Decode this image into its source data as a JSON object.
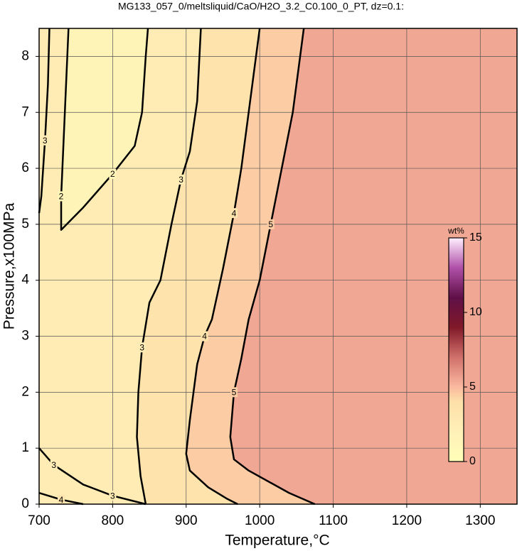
{
  "chart_data": {
    "type": "contour",
    "title": "MG133_057_0/meltsliquid/CaO/H2O_3.2_C0.100_0_PT, dz=0.1:",
    "x_label": "Temperature,°C",
    "y_label": "Pressure,x100MPa",
    "xlim": [
      700,
      1350
    ],
    "ylim": [
      0,
      8.5
    ],
    "xticks": [
      700,
      800,
      900,
      1000,
      1100,
      1200,
      1300
    ],
    "yticks": [
      0,
      1,
      2,
      3,
      4,
      5,
      6,
      7,
      8
    ],
    "grid": true,
    "contours": [
      {
        "level": 2,
        "x": [
          740,
          735,
          730,
          730,
          760,
          800,
          830,
          840,
          845,
          848
        ],
        "y": [
          8.5,
          7,
          5.5,
          4.9,
          5.3,
          5.9,
          6.4,
          7,
          8,
          8.5
        ]
      },
      {
        "level": 3,
        "x": [
          845,
          838,
          833,
          835,
          840,
          850,
          865,
          880,
          893,
          905,
          915,
          920
        ],
        "y": [
          0,
          0.5,
          1.2,
          2,
          2.8,
          3.6,
          4.0,
          5,
          5.8,
          6.3,
          7.2,
          8.5
        ]
      },
      {
        "level": 3,
        "x": [
          700,
          720,
          760,
          800,
          845
        ],
        "y": [
          1.0,
          0.7,
          0.35,
          0.15,
          0
        ]
      },
      {
        "level": 3,
        "x": [
          700,
          703,
          708,
          712,
          714
        ],
        "y": [
          5.2,
          5.5,
          6.5,
          7.5,
          8.5
        ]
      },
      {
        "level": 4,
        "x": [
          970,
          955,
          930,
          905,
          900,
          905,
          915,
          925,
          935,
          950,
          965,
          975,
          985,
          1000
        ],
        "y": [
          0,
          0.1,
          0.3,
          0.6,
          0.9,
          1.5,
          2.5,
          3.0,
          3.3,
          4.2,
          5.2,
          6,
          7,
          8.5
        ]
      },
      {
        "level": 4,
        "x": [
          700,
          730,
          760
        ],
        "y": [
          0.2,
          0.08,
          0
        ]
      },
      {
        "level": 5,
        "x": [
          1075,
          1040,
          985,
          965,
          960,
          965,
          975,
          985,
          1000,
          1015,
          1030,
          1045,
          1055,
          1060
        ],
        "y": [
          0,
          0.2,
          0.6,
          0.8,
          1.2,
          2,
          2.6,
          3.3,
          4,
          5,
          6,
          7,
          8,
          8.5
        ]
      }
    ],
    "colorbar": {
      "label": "wt%",
      "lim": [
        0,
        15
      ],
      "ticks": [
        0,
        5,
        10,
        15
      ],
      "colormap": [
        {
          "value": 0,
          "color": "#ffffb8"
        },
        {
          "value": 2,
          "color": "#fff0b8"
        },
        {
          "value": 4,
          "color": "#fde0a8"
        },
        {
          "value": 5,
          "color": "#fbb9a0"
        },
        {
          "value": 7,
          "color": "#d0706a"
        },
        {
          "value": 9,
          "color": "#801828"
        },
        {
          "value": 11,
          "color": "#601048"
        },
        {
          "value": 13,
          "color": "#b050a8"
        },
        {
          "value": 15,
          "color": "#fff0ff"
        }
      ]
    }
  }
}
